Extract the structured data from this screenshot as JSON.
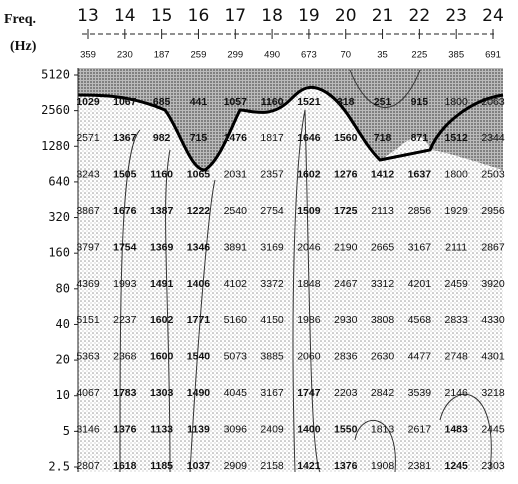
{
  "axis": {
    "label": "Freq.",
    "unit": "(Hz)"
  },
  "stations": [
    "13",
    "14",
    "15",
    "16",
    "17",
    "18",
    "19",
    "20",
    "21",
    "22",
    "23",
    "24"
  ],
  "top_values": [
    359,
    230,
    187,
    259,
    299,
    490,
    673,
    70,
    35,
    225,
    385,
    691
  ],
  "frequencies": [
    "5120",
    "2560",
    "1280",
    "640",
    "320",
    "160",
    "80",
    "40",
    "20",
    "10",
    "5",
    "2.5"
  ],
  "rows": [
    [
      1029,
      1067,
      685,
      441,
      1057,
      1160,
      1521,
      318,
      251,
      915,
      1800,
      2063
    ],
    [
      2571,
      1367,
      982,
      715,
      1476,
      1817,
      1646,
      1560,
      718,
      871,
      1512,
      2344
    ],
    [
      3243,
      1505,
      1160,
      1065,
      2031,
      2357,
      1602,
      1276,
      1412,
      1637,
      1800,
      2503
    ],
    [
      3867,
      1676,
      1387,
      1222,
      2540,
      2754,
      1509,
      1725,
      2113,
      2856,
      1929,
      2956
    ],
    [
      3797,
      1754,
      1369,
      1346,
      3891,
      3169,
      2046,
      2190,
      2665,
      3167,
      2111,
      2867
    ],
    [
      4369,
      1993,
      1491,
      1406,
      4102,
      3372,
      1848,
      2467,
      3312,
      4201,
      2459,
      3920
    ],
    [
      5151,
      2237,
      1602,
      1771,
      5160,
      4150,
      1986,
      2930,
      3808,
      4568,
      2833,
      4330
    ],
    [
      5363,
      2368,
      1600,
      1540,
      5073,
      3885,
      2060,
      2836,
      2630,
      4477,
      2748,
      4301
    ],
    [
      4067,
      1783,
      1303,
      1490,
      4045,
      3167,
      1747,
      2203,
      2842,
      3539,
      2146,
      3218
    ],
    [
      3146,
      1376,
      1133,
      1139,
      3096,
      2409,
      1400,
      1550,
      1813,
      2617,
      1483,
      2445
    ],
    [
      2807,
      1618,
      1185,
      1037,
      2909,
      2158,
      1421,
      1376,
      1908,
      2381,
      1245,
      2303
    ]
  ]
}
